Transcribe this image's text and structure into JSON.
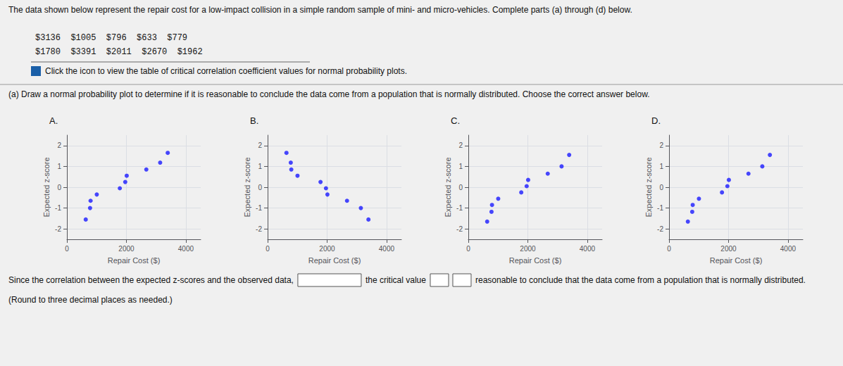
{
  "chart_data": [
    {
      "type": "scatter",
      "title": "A.",
      "annotations": [
        "The data shown below represent the repair cost for a low-impact collision in a simple random sample of mini- and micro-vehicles. Complete parts (a) through (d) below.",
        "$3136  $1005  $796  $633  $779",
        "$1780  $3391  $2011  $2670  $1962",
        "Click the icon to view the table of critical correlation coefficient values for normal probability plots.",
        "(a) Draw a normal probability plot to determine if it is reasonable to conclude the data come from a population that is normally distributed. Choose the correct answer below.",
        "Since the correlation between the expected z-scores and the observed data,",
        "the critical value",
        "reasonable to conclude that the data come from a population that is normally distributed.",
        "(Round to three decimal places as needed.)"
      ],
      "x": [
        633,
        779,
        796,
        1005,
        1780,
        1962,
        2011,
        2670,
        3136,
        3391
      ],
      "values": [
        -1.55,
        -1.0,
        -0.65,
        -0.35,
        -0.05,
        0.25,
        0.55,
        0.85,
        1.18,
        1.65
      ],
      "color": "#1a1aff",
      "xlabel": "Repair Cost ($)",
      "ylabel": "Expected z-score",
      "xlim": [
        0,
        4500
      ],
      "xticks": [
        0,
        2000,
        4000
      ],
      "ylim": [
        -2.5,
        2.5
      ],
      "yticks": [
        -2,
        -1,
        0,
        1,
        2
      ],
      "grid": true
    },
    {
      "type": "scatter",
      "title": "B.",
      "x": [
        3391,
        3136,
        2670,
        2011,
        1962,
        1780,
        1005,
        796,
        779,
        633
      ],
      "values": [
        -1.55,
        -1.0,
        -0.65,
        -0.35,
        -0.05,
        0.25,
        0.55,
        0.85,
        1.18,
        1.65
      ],
      "color": "#1a1aff",
      "xlabel": "Repair Cost ($)",
      "ylabel": "Expected z-score",
      "xlim": [
        0,
        4500
      ],
      "xticks": [
        0,
        2000,
        4000
      ],
      "ylim": [
        -2.5,
        2.5
      ],
      "yticks": [
        -2,
        -1,
        0,
        1,
        2
      ],
      "grid": true
    },
    {
      "type": "scatter",
      "title": "C.",
      "x": [
        3391,
        3136,
        2670,
        2011,
        1962,
        1780,
        1005,
        796,
        779,
        633
      ],
      "values": [
        1.55,
        1.0,
        0.65,
        0.35,
        0.05,
        -0.25,
        -0.55,
        -0.85,
        -1.18,
        -1.65
      ],
      "color": "#1a1aff",
      "xlabel": "Repair Cost ($)",
      "ylabel": "Expected z-score",
      "xlim": [
        0,
        4500
      ],
      "xticks": [
        0,
        2000,
        4000
      ],
      "ylim": [
        -2.5,
        2.5
      ],
      "yticks": [
        -2,
        -1,
        0,
        1,
        2
      ],
      "grid": true
    },
    {
      "type": "scatter",
      "title": "D.",
      "x": [
        633,
        779,
        796,
        1005,
        1780,
        1962,
        2011,
        2670,
        3136,
        3391
      ],
      "values": [
        -1.65,
        -1.18,
        -0.85,
        -0.55,
        -0.25,
        0.05,
        0.35,
        0.65,
        1.0,
        1.55
      ],
      "color": "#1a1aff",
      "xlabel": "Repair Cost ($)",
      "ylabel": "Expected z-score",
      "xlim": [
        0,
        4500
      ],
      "xticks": [
        0,
        2000,
        4000
      ],
      "ylim": [
        -2.5,
        2.5
      ],
      "yticks": [
        -2,
        -1,
        0,
        1,
        2
      ],
      "grid": true
    }
  ]
}
